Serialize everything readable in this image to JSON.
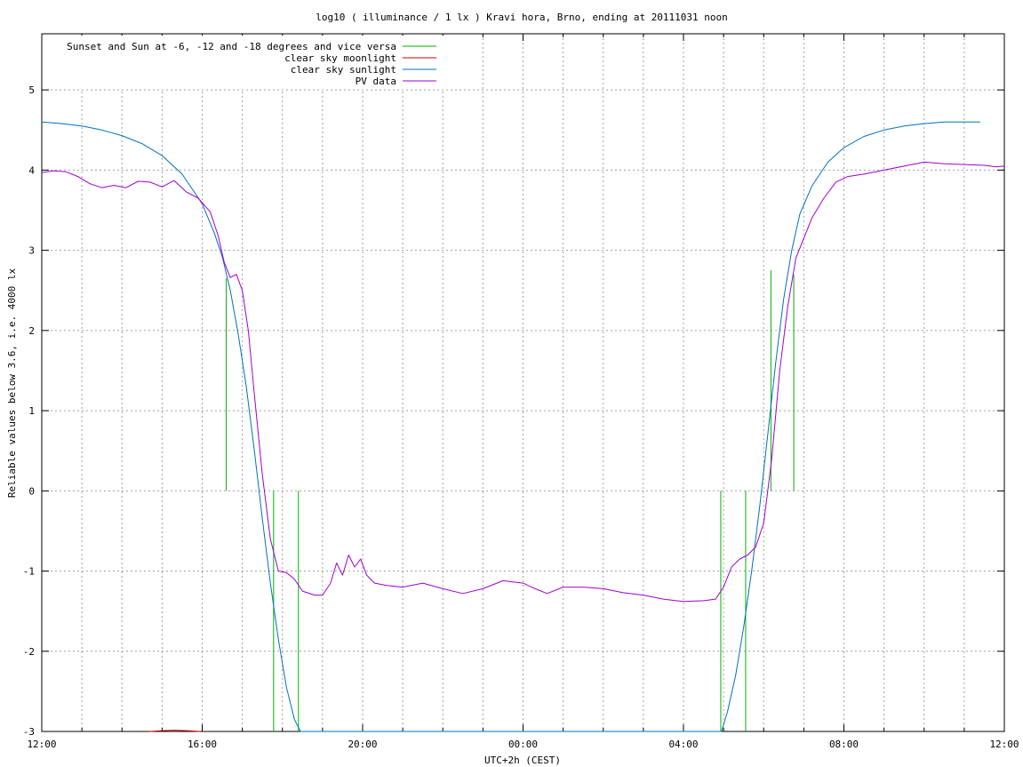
{
  "chart_data": {
    "type": "line",
    "title": "log10 ( illuminance / 1 lx ) Kravi hora, Brno, ending at 20111031 noon",
    "xlabel": "UTC+2h (CEST)",
    "ylabel": "Reliable values below 3.6, i.e. 4000 lx",
    "xlim": [
      12,
      36
    ],
    "ylim": [
      -3,
      5.7
    ],
    "grid": true,
    "legend_position": "top-left",
    "x_ticks": [
      {
        "value": 12,
        "label": "12:00"
      },
      {
        "value": 16,
        "label": "16:00"
      },
      {
        "value": 20,
        "label": "20:00"
      },
      {
        "value": 24,
        "label": "00:00"
      },
      {
        "value": 28,
        "label": "04:00"
      },
      {
        "value": 32,
        "label": "08:00"
      },
      {
        "value": 36,
        "label": "12:00"
      }
    ],
    "x_minor_grid": [
      13,
      14,
      15,
      17,
      18,
      19,
      21,
      22,
      23,
      25,
      26,
      27,
      29,
      30,
      31,
      33,
      34,
      35
    ],
    "y_ticks": [
      {
        "value": 5,
        "label": "5"
      },
      {
        "value": 4,
        "label": "4"
      },
      {
        "value": 3,
        "label": "3"
      },
      {
        "value": 2,
        "label": "2"
      },
      {
        "value": 1,
        "label": "1"
      },
      {
        "value": 0,
        "label": "0"
      },
      {
        "value": -1,
        "label": "-1"
      },
      {
        "value": -2,
        "label": "-2"
      },
      {
        "value": -3,
        "label": "-3"
      }
    ],
    "series": [
      {
        "name": "Sunset and Sun at -6, -12 and -18 degrees and vice versa",
        "color": "#00b000",
        "kind": "vertical_segments",
        "segments": [
          {
            "x": 16.6,
            "y0": 0,
            "y1": 2.65
          },
          {
            "x": 17.78,
            "y0": -3,
            "y1": 0
          },
          {
            "x": 18.4,
            "y0": -3,
            "y1": 0
          },
          {
            "x": 28.93,
            "y0": -3,
            "y1": 0
          },
          {
            "x": 29.55,
            "y0": -3,
            "y1": 0
          },
          {
            "x": 30.18,
            "y0": 0,
            "y1": 2.75
          },
          {
            "x": 30.75,
            "y0": 0,
            "y1": 2.7
          }
        ]
      },
      {
        "name": "clear sky moonlight",
        "color": "#cc0000",
        "x": [
          14.7,
          15.0,
          15.3,
          15.6,
          15.95
        ],
        "y": [
          -3.0,
          -2.99,
          -2.985,
          -2.99,
          -3.0
        ]
      },
      {
        "name": "clear sky sunlight",
        "color": "#0070c0",
        "x": [
          12.0,
          12.5,
          13.0,
          13.5,
          14.0,
          14.5,
          15.0,
          15.5,
          16.0,
          16.3,
          16.5,
          16.7,
          16.9,
          17.1,
          17.3,
          17.5,
          17.7,
          17.9,
          18.1,
          18.3,
          18.45,
          28.95,
          29.1,
          29.3,
          29.5,
          29.7,
          29.9,
          30.1,
          30.3,
          30.5,
          30.7,
          30.9,
          31.2,
          31.6,
          32.0,
          32.5,
          33.0,
          33.5,
          34.0,
          34.5,
          35.0,
          35.4
        ],
        "y": [
          4.6,
          4.58,
          4.55,
          4.5,
          4.43,
          4.33,
          4.18,
          3.95,
          3.58,
          3.22,
          2.92,
          2.5,
          1.95,
          1.3,
          0.5,
          -0.35,
          -1.15,
          -1.85,
          -2.45,
          -2.85,
          -3.0,
          -3.0,
          -2.75,
          -2.3,
          -1.7,
          -1.0,
          -0.2,
          0.7,
          1.6,
          2.4,
          3.0,
          3.45,
          3.8,
          4.1,
          4.28,
          4.42,
          4.5,
          4.55,
          4.58,
          4.6,
          4.6,
          4.6
        ]
      },
      {
        "name": "PV data",
        "color": "#a000d0",
        "x": [
          12.0,
          12.3,
          12.6,
          12.9,
          13.2,
          13.5,
          13.8,
          14.1,
          14.4,
          14.7,
          15.0,
          15.3,
          15.6,
          15.9,
          16.2,
          16.4,
          16.55,
          16.7,
          16.85,
          17.0,
          17.15,
          17.3,
          17.5,
          17.7,
          17.9,
          18.1,
          18.3,
          18.5,
          18.8,
          19.0,
          19.2,
          19.35,
          19.5,
          19.65,
          19.8,
          19.95,
          20.1,
          20.3,
          20.6,
          21.0,
          21.5,
          22.0,
          22.5,
          23.0,
          23.5,
          24.0,
          24.3,
          24.6,
          25.0,
          25.5,
          26.0,
          26.5,
          27.0,
          27.5,
          28.0,
          28.5,
          28.8,
          29.0,
          29.2,
          29.4,
          29.6,
          29.8,
          30.0,
          30.2,
          30.4,
          30.6,
          30.8,
          31.0,
          31.2,
          31.5,
          31.8,
          32.1,
          32.5,
          33.0,
          33.5,
          33.8,
          34.0,
          34.5,
          35.0,
          35.5,
          35.8,
          36.0
        ],
        "y": [
          3.97,
          3.99,
          3.98,
          3.92,
          3.83,
          3.78,
          3.81,
          3.78,
          3.86,
          3.85,
          3.79,
          3.87,
          3.73,
          3.65,
          3.48,
          3.18,
          2.85,
          2.66,
          2.7,
          2.5,
          2.0,
          1.2,
          0.2,
          -0.6,
          -1.0,
          -1.02,
          -1.1,
          -1.25,
          -1.3,
          -1.3,
          -1.15,
          -0.9,
          -1.05,
          -0.8,
          -0.95,
          -0.85,
          -1.05,
          -1.15,
          -1.18,
          -1.2,
          -1.15,
          -1.22,
          -1.28,
          -1.22,
          -1.12,
          -1.15,
          -1.22,
          -1.28,
          -1.2,
          -1.2,
          -1.22,
          -1.27,
          -1.3,
          -1.35,
          -1.38,
          -1.37,
          -1.35,
          -1.2,
          -0.95,
          -0.85,
          -0.8,
          -0.7,
          -0.4,
          0.4,
          1.5,
          2.3,
          2.9,
          3.15,
          3.4,
          3.65,
          3.85,
          3.92,
          3.95,
          4.0,
          4.05,
          4.08,
          4.1,
          4.08,
          4.07,
          4.06,
          4.04,
          4.05
        ]
      }
    ]
  }
}
